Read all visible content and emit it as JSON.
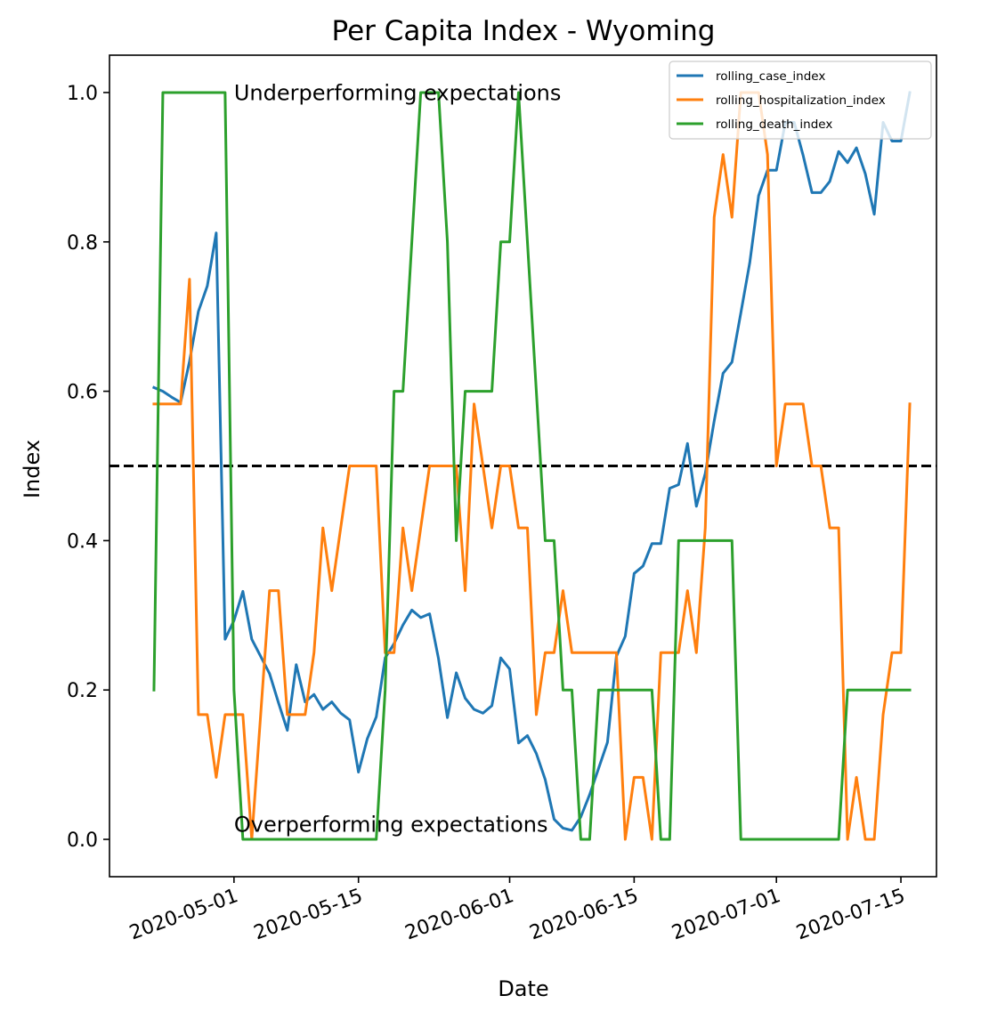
{
  "chart_data": {
    "type": "line",
    "title": "Per Capita Index - Wyoming",
    "xlabel": "Date",
    "ylabel": "Index",
    "x_range": [
      "2020-04-17",
      "2020-07-19"
    ],
    "ylim": [
      -0.05,
      1.05
    ],
    "x_ticks": [
      "2020-05-01",
      "2020-05-15",
      "2020-06-01",
      "2020-06-15",
      "2020-07-01",
      "2020-07-15"
    ],
    "x_tick_rotation_deg": 20,
    "y_ticks": [
      0.0,
      0.2,
      0.4,
      0.6,
      0.8,
      1.0
    ],
    "y_tick_labels": [
      "0.0",
      "0.2",
      "0.4",
      "0.6",
      "0.8",
      "1.0"
    ],
    "grid": false,
    "legend_position": "top-right",
    "reference_line": {
      "y": 0.5,
      "style": "dashed",
      "color": "#000000"
    },
    "annotations": [
      {
        "text": "Underperforming expectations",
        "x": "2020-05-01",
        "y": 0.99
      },
      {
        "text": "Overperforming expectations",
        "x": "2020-05-01",
        "y": 0.01
      }
    ],
    "series": [
      {
        "name": "rolling_case_index",
        "color": "#1f77b4",
        "points": [
          [
            "2020-04-22",
            0.605
          ],
          [
            "2020-04-23",
            0.6
          ],
          [
            "2020-04-24",
            0.592
          ],
          [
            "2020-04-25",
            0.585
          ],
          [
            "2020-04-26",
            0.64
          ],
          [
            "2020-04-27",
            0.707
          ],
          [
            "2020-04-28",
            0.741
          ],
          [
            "2020-04-29",
            0.812
          ],
          [
            "2020-04-30",
            0.268
          ],
          [
            "2020-05-01",
            0.293
          ],
          [
            "2020-05-02",
            0.332
          ],
          [
            "2020-05-03",
            0.268
          ],
          [
            "2020-05-04",
            0.245
          ],
          [
            "2020-05-05",
            0.222
          ],
          [
            "2020-05-06",
            0.183
          ],
          [
            "2020-05-07",
            0.146
          ],
          [
            "2020-05-08",
            0.234
          ],
          [
            "2020-05-09",
            0.184
          ],
          [
            "2020-05-10",
            0.194
          ],
          [
            "2020-05-11",
            0.174
          ],
          [
            "2020-05-12",
            0.184
          ],
          [
            "2020-05-13",
            0.169
          ],
          [
            "2020-05-14",
            0.16
          ],
          [
            "2020-05-15",
            0.09
          ],
          [
            "2020-05-16",
            0.135
          ],
          [
            "2020-05-17",
            0.164
          ],
          [
            "2020-05-18",
            0.243
          ],
          [
            "2020-05-19",
            0.262
          ],
          [
            "2020-05-20",
            0.287
          ],
          [
            "2020-05-21",
            0.307
          ],
          [
            "2020-05-22",
            0.297
          ],
          [
            "2020-05-23",
            0.302
          ],
          [
            "2020-05-24",
            0.242
          ],
          [
            "2020-05-25",
            0.163
          ],
          [
            "2020-05-26",
            0.223
          ],
          [
            "2020-05-27",
            0.189
          ],
          [
            "2020-05-28",
            0.174
          ],
          [
            "2020-05-29",
            0.169
          ],
          [
            "2020-05-30",
            0.179
          ],
          [
            "2020-05-31",
            0.243
          ],
          [
            "2020-06-01",
            0.228
          ],
          [
            "2020-06-02",
            0.129
          ],
          [
            "2020-06-03",
            0.139
          ],
          [
            "2020-06-04",
            0.115
          ],
          [
            "2020-06-05",
            0.08
          ],
          [
            "2020-06-06",
            0.027
          ],
          [
            "2020-06-07",
            0.015
          ],
          [
            "2020-06-08",
            0.012
          ],
          [
            "2020-06-09",
            0.03
          ],
          [
            "2020-06-10",
            0.06
          ],
          [
            "2020-06-11",
            0.095
          ],
          [
            "2020-06-12",
            0.13
          ],
          [
            "2020-06-13",
            0.245
          ],
          [
            "2020-06-14",
            0.272
          ],
          [
            "2020-06-15",
            0.356
          ],
          [
            "2020-06-16",
            0.366
          ],
          [
            "2020-06-17",
            0.396
          ],
          [
            "2020-06-18",
            0.396
          ],
          [
            "2020-06-19",
            0.47
          ],
          [
            "2020-06-20",
            0.475
          ],
          [
            "2020-06-21",
            0.53
          ],
          [
            "2020-06-22",
            0.446
          ],
          [
            "2020-06-23",
            0.49
          ],
          [
            "2020-06-24",
            0.56
          ],
          [
            "2020-06-25",
            0.624
          ],
          [
            "2020-06-26",
            0.639
          ],
          [
            "2020-06-27",
            0.705
          ],
          [
            "2020-06-28",
            0.772
          ],
          [
            "2020-06-29",
            0.862
          ],
          [
            "2020-06-30",
            0.896
          ],
          [
            "2020-07-01",
            0.896
          ],
          [
            "2020-07-02",
            0.96
          ],
          [
            "2020-07-03",
            0.96
          ],
          [
            "2020-07-04",
            0.916
          ],
          [
            "2020-07-05",
            0.866
          ],
          [
            "2020-07-06",
            0.866
          ],
          [
            "2020-07-07",
            0.881
          ],
          [
            "2020-07-08",
            0.921
          ],
          [
            "2020-07-09",
            0.906
          ],
          [
            "2020-07-10",
            0.926
          ],
          [
            "2020-07-11",
            0.891
          ],
          [
            "2020-07-12",
            0.837
          ],
          [
            "2020-07-13",
            0.96
          ],
          [
            "2020-07-14",
            0.935
          ],
          [
            "2020-07-15",
            0.935
          ],
          [
            "2020-07-16",
            1.0
          ]
        ]
      },
      {
        "name": "rolling_hospitalization_index",
        "color": "#ff7f0e",
        "points": [
          [
            "2020-04-22",
            0.583
          ],
          [
            "2020-04-23",
            0.583
          ],
          [
            "2020-04-24",
            0.583
          ],
          [
            "2020-04-25",
            0.583
          ],
          [
            "2020-04-26",
            0.75
          ],
          [
            "2020-04-27",
            0.167
          ],
          [
            "2020-04-28",
            0.167
          ],
          [
            "2020-04-29",
            0.083
          ],
          [
            "2020-04-30",
            0.167
          ],
          [
            "2020-05-01",
            0.167
          ],
          [
            "2020-05-02",
            0.167
          ],
          [
            "2020-05-03",
            0.0
          ],
          [
            "2020-05-04",
            0.167
          ],
          [
            "2020-05-05",
            0.333
          ],
          [
            "2020-05-06",
            0.333
          ],
          [
            "2020-05-07",
            0.167
          ],
          [
            "2020-05-08",
            0.167
          ],
          [
            "2020-05-09",
            0.167
          ],
          [
            "2020-05-10",
            0.25
          ],
          [
            "2020-05-11",
            0.417
          ],
          [
            "2020-05-12",
            0.333
          ],
          [
            "2020-05-13",
            0.417
          ],
          [
            "2020-05-14",
            0.5
          ],
          [
            "2020-05-15",
            0.5
          ],
          [
            "2020-05-16",
            0.5
          ],
          [
            "2020-05-17",
            0.5
          ],
          [
            "2020-05-18",
            0.25
          ],
          [
            "2020-05-19",
            0.25
          ],
          [
            "2020-05-20",
            0.417
          ],
          [
            "2020-05-21",
            0.333
          ],
          [
            "2020-05-22",
            0.417
          ],
          [
            "2020-05-23",
            0.5
          ],
          [
            "2020-05-24",
            0.5
          ],
          [
            "2020-05-25",
            0.5
          ],
          [
            "2020-05-26",
            0.5
          ],
          [
            "2020-05-27",
            0.333
          ],
          [
            "2020-05-28",
            0.583
          ],
          [
            "2020-05-29",
            0.5
          ],
          [
            "2020-05-30",
            0.417
          ],
          [
            "2020-05-31",
            0.5
          ],
          [
            "2020-06-01",
            0.5
          ],
          [
            "2020-06-02",
            0.417
          ],
          [
            "2020-06-03",
            0.417
          ],
          [
            "2020-06-04",
            0.167
          ],
          [
            "2020-06-05",
            0.25
          ],
          [
            "2020-06-06",
            0.25
          ],
          [
            "2020-06-07",
            0.333
          ],
          [
            "2020-06-08",
            0.25
          ],
          [
            "2020-06-09",
            0.25
          ],
          [
            "2020-06-10",
            0.25
          ],
          [
            "2020-06-11",
            0.25
          ],
          [
            "2020-06-12",
            0.25
          ],
          [
            "2020-06-13",
            0.25
          ],
          [
            "2020-06-14",
            0.0
          ],
          [
            "2020-06-15",
            0.083
          ],
          [
            "2020-06-16",
            0.083
          ],
          [
            "2020-06-17",
            0.0
          ],
          [
            "2020-06-18",
            0.25
          ],
          [
            "2020-06-19",
            0.25
          ],
          [
            "2020-06-20",
            0.25
          ],
          [
            "2020-06-21",
            0.333
          ],
          [
            "2020-06-22",
            0.25
          ],
          [
            "2020-06-23",
            0.417
          ],
          [
            "2020-06-24",
            0.833
          ],
          [
            "2020-06-25",
            0.917
          ],
          [
            "2020-06-26",
            0.833
          ],
          [
            "2020-06-27",
            1.0
          ],
          [
            "2020-06-28",
            1.0
          ],
          [
            "2020-06-29",
            1.0
          ],
          [
            "2020-06-30",
            0.917
          ],
          [
            "2020-07-01",
            0.5
          ],
          [
            "2020-07-02",
            0.583
          ],
          [
            "2020-07-03",
            0.583
          ],
          [
            "2020-07-04",
            0.583
          ],
          [
            "2020-07-05",
            0.5
          ],
          [
            "2020-07-06",
            0.5
          ],
          [
            "2020-07-07",
            0.417
          ],
          [
            "2020-07-08",
            0.417
          ],
          [
            "2020-07-09",
            0.0
          ],
          [
            "2020-07-10",
            0.083
          ],
          [
            "2020-07-11",
            0.0
          ],
          [
            "2020-07-12",
            0.0
          ],
          [
            "2020-07-13",
            0.167
          ],
          [
            "2020-07-14",
            0.25
          ],
          [
            "2020-07-15",
            0.25
          ],
          [
            "2020-07-16",
            0.583
          ]
        ]
      },
      {
        "name": "rolling_death_index",
        "color": "#2ca02c",
        "points": [
          [
            "2020-04-22",
            0.2
          ],
          [
            "2020-04-23",
            1.0
          ],
          [
            "2020-04-24",
            1.0
          ],
          [
            "2020-04-25",
            1.0
          ],
          [
            "2020-04-26",
            1.0
          ],
          [
            "2020-04-27",
            1.0
          ],
          [
            "2020-04-28",
            1.0
          ],
          [
            "2020-04-29",
            1.0
          ],
          [
            "2020-04-30",
            1.0
          ],
          [
            "2020-05-01",
            0.2
          ],
          [
            "2020-05-02",
            0.0
          ],
          [
            "2020-05-03",
            0.0
          ],
          [
            "2020-05-04",
            0.0
          ],
          [
            "2020-05-05",
            0.0
          ],
          [
            "2020-05-06",
            0.0
          ],
          [
            "2020-05-07",
            0.0
          ],
          [
            "2020-05-08",
            0.0
          ],
          [
            "2020-05-09",
            0.0
          ],
          [
            "2020-05-10",
            0.0
          ],
          [
            "2020-05-11",
            0.0
          ],
          [
            "2020-05-12",
            0.0
          ],
          [
            "2020-05-13",
            0.0
          ],
          [
            "2020-05-14",
            0.0
          ],
          [
            "2020-05-15",
            0.0
          ],
          [
            "2020-05-16",
            0.0
          ],
          [
            "2020-05-17",
            0.0
          ],
          [
            "2020-05-18",
            0.2
          ],
          [
            "2020-05-19",
            0.6
          ],
          [
            "2020-05-20",
            0.6
          ],
          [
            "2020-05-21",
            0.8
          ],
          [
            "2020-05-22",
            1.0
          ],
          [
            "2020-05-23",
            1.0
          ],
          [
            "2020-05-24",
            1.0
          ],
          [
            "2020-05-25",
            0.8
          ],
          [
            "2020-05-26",
            0.4
          ],
          [
            "2020-05-27",
            0.6
          ],
          [
            "2020-05-28",
            0.6
          ],
          [
            "2020-05-29",
            0.6
          ],
          [
            "2020-05-30",
            0.6
          ],
          [
            "2020-05-31",
            0.8
          ],
          [
            "2020-06-01",
            0.8
          ],
          [
            "2020-06-02",
            1.0
          ],
          [
            "2020-06-03",
            0.8
          ],
          [
            "2020-06-04",
            0.6
          ],
          [
            "2020-06-05",
            0.4
          ],
          [
            "2020-06-06",
            0.4
          ],
          [
            "2020-06-07",
            0.2
          ],
          [
            "2020-06-08",
            0.2
          ],
          [
            "2020-06-09",
            0.0
          ],
          [
            "2020-06-10",
            0.0
          ],
          [
            "2020-06-11",
            0.2
          ],
          [
            "2020-06-12",
            0.2
          ],
          [
            "2020-06-13",
            0.2
          ],
          [
            "2020-06-14",
            0.2
          ],
          [
            "2020-06-15",
            0.2
          ],
          [
            "2020-06-16",
            0.2
          ],
          [
            "2020-06-17",
            0.2
          ],
          [
            "2020-06-18",
            0.0
          ],
          [
            "2020-06-19",
            0.0
          ],
          [
            "2020-06-20",
            0.4
          ],
          [
            "2020-06-21",
            0.4
          ],
          [
            "2020-06-22",
            0.4
          ],
          [
            "2020-06-23",
            0.4
          ],
          [
            "2020-06-24",
            0.4
          ],
          [
            "2020-06-25",
            0.4
          ],
          [
            "2020-06-26",
            0.4
          ],
          [
            "2020-06-27",
            0.0
          ],
          [
            "2020-06-28",
            0.0
          ],
          [
            "2020-06-29",
            0.0
          ],
          [
            "2020-06-30",
            0.0
          ],
          [
            "2020-07-01",
            0.0
          ],
          [
            "2020-07-02",
            0.0
          ],
          [
            "2020-07-03",
            0.0
          ],
          [
            "2020-07-04",
            0.0
          ],
          [
            "2020-07-05",
            0.0
          ],
          [
            "2020-07-06",
            0.0
          ],
          [
            "2020-07-07",
            0.0
          ],
          [
            "2020-07-08",
            0.0
          ],
          [
            "2020-07-09",
            0.2
          ],
          [
            "2020-07-10",
            0.2
          ],
          [
            "2020-07-11",
            0.2
          ],
          [
            "2020-07-12",
            0.2
          ],
          [
            "2020-07-13",
            0.2
          ],
          [
            "2020-07-14",
            0.2
          ],
          [
            "2020-07-15",
            0.2
          ],
          [
            "2020-07-16",
            0.2
          ]
        ]
      }
    ]
  }
}
